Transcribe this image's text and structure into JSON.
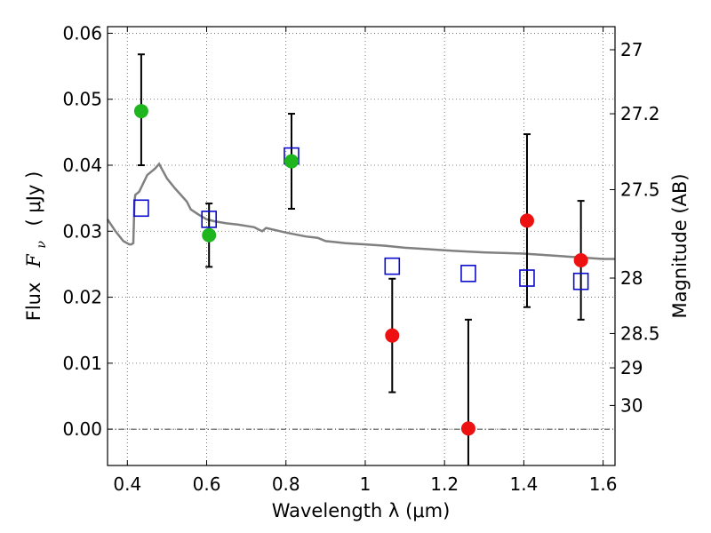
{
  "chart_data": {
    "type": "scatter",
    "xlabel": "Wavelength  λ (μm)",
    "ylabel_prefix": "Flux",
    "ylabel_var": "F",
    "ylabel_sub": "ν",
    "ylabel_unit": "(  μJy )",
    "y2label": "Magnitude (AB)",
    "xlim": [
      0.35,
      1.63
    ],
    "ylim": [
      -0.0055,
      0.061
    ],
    "grid": true,
    "zero_line": true,
    "x_ticks": [
      0.4,
      0.6,
      0.8,
      1.0,
      1.2,
      1.4,
      1.6
    ],
    "x_tick_labels": [
      "0.4",
      "0.6",
      "0.8",
      "1",
      "1.2",
      "1.4",
      "1.6"
    ],
    "y_ticks": [
      0.0,
      0.01,
      0.02,
      0.03,
      0.04,
      0.05,
      0.06
    ],
    "y_tick_labels": [
      "0.00",
      "0.01",
      "0.02",
      "0.03",
      "0.04",
      "0.05",
      "0.06"
    ],
    "mag_ticks": [
      {
        "label": "27",
        "flux": 0.0575
      },
      {
        "label": "27.2",
        "flux": 0.0478
      },
      {
        "label": "27.5",
        "flux": 0.0363
      },
      {
        "label": "28",
        "flux": 0.0229
      },
      {
        "label": "28.5",
        "flux": 0.0145
      },
      {
        "label": "29",
        "flux": 0.0093
      },
      {
        "label": "30",
        "flux": 0.0036
      }
    ],
    "colors": {
      "optical": "#1fb51f",
      "nir": "#ee1111",
      "model": "#0a0acc",
      "sed": "#808080",
      "errorbar": "#000000"
    },
    "series": [
      {
        "kind": "measured",
        "color_key": "optical",
        "x": [
          0.435,
          0.606,
          0.814
        ],
        "y": [
          0.0482,
          0.0294,
          0.0406
        ],
        "err_low": [
          0.04,
          0.0246,
          0.0334
        ],
        "err_high": [
          0.0568,
          0.0342,
          0.0478
        ]
      },
      {
        "kind": "measured",
        "color_key": "nir",
        "x": [
          1.068,
          1.26,
          1.408,
          1.544
        ],
        "y": [
          0.0142,
          0.0001,
          0.0316,
          0.0256
        ],
        "err_low": [
          0.0056,
          -0.007,
          0.0185,
          0.0166
        ],
        "err_high": [
          0.0228,
          0.0166,
          0.0447,
          0.0346
        ]
      },
      {
        "kind": "model",
        "color_key": "model",
        "x": [
          0.435,
          0.606,
          0.814,
          1.068,
          1.26,
          1.408,
          1.544
        ],
        "y": [
          0.0335,
          0.0318,
          0.0414,
          0.0247,
          0.0236,
          0.0229,
          0.0224
        ]
      },
      {
        "kind": "sed",
        "color_key": "sed",
        "x": [
          0.35,
          0.37,
          0.39,
          0.405,
          0.41,
          0.415,
          0.418,
          0.42,
          0.43,
          0.45,
          0.47,
          0.48,
          0.5,
          0.52,
          0.535,
          0.55,
          0.56,
          0.58,
          0.6,
          0.62,
          0.65,
          0.68,
          0.7,
          0.72,
          0.73,
          0.74,
          0.75,
          0.8,
          0.85,
          0.88,
          0.9,
          0.95,
          1.0,
          1.05,
          1.1,
          1.15,
          1.2,
          1.3,
          1.4,
          1.5,
          1.6,
          1.63
        ],
        "y": [
          0.0318,
          0.03,
          0.0285,
          0.028,
          0.028,
          0.0282,
          0.0345,
          0.0355,
          0.036,
          0.0385,
          0.0395,
          0.0402,
          0.038,
          0.0365,
          0.0355,
          0.0345,
          0.0333,
          0.0325,
          0.0318,
          0.0315,
          0.0312,
          0.031,
          0.0308,
          0.0306,
          0.0303,
          0.03,
          0.0305,
          0.0298,
          0.0292,
          0.029,
          0.0285,
          0.0282,
          0.028,
          0.0278,
          0.0275,
          0.0273,
          0.0271,
          0.0268,
          0.0266,
          0.0262,
          0.0258,
          0.0258
        ]
      }
    ]
  }
}
